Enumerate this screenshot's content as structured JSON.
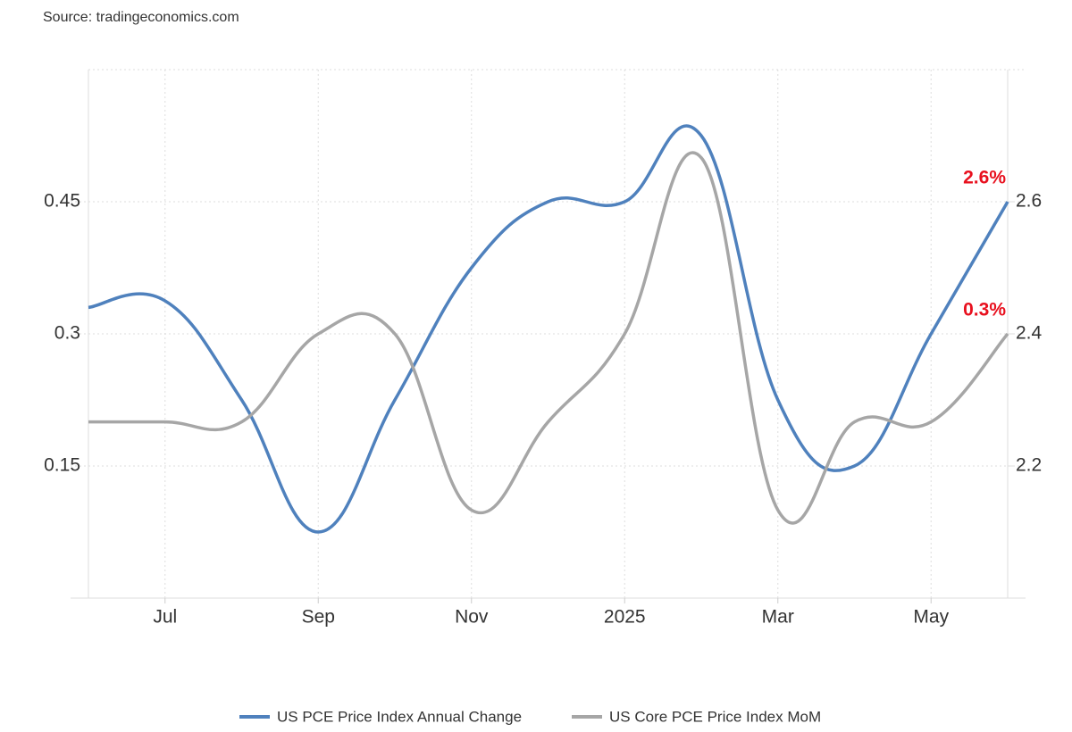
{
  "chart_data": {
    "type": "line",
    "source": "Source: tradingeconomics.com",
    "categories": [
      null,
      "Jul",
      null,
      "Sep",
      null,
      "Nov",
      null,
      "2025",
      null,
      "Mar",
      null,
      "May",
      null
    ],
    "ylim": [
      0,
      0.6
    ],
    "yticks": [
      0.15,
      0.3,
      0.45
    ],
    "y2lim": [
      2.0,
      2.8
    ],
    "y2ticks": [
      2.2,
      2.4,
      2.6
    ],
    "grid": true,
    "legend": "bottom",
    "series": [
      {
        "name": "US PCE Price Index Annual Change",
        "color": "#4f81bd",
        "axis": "y2",
        "values": [
          2.44,
          2.45,
          2.3,
          2.1,
          2.3,
          2.5,
          2.6,
          2.6,
          2.7,
          2.3,
          2.2,
          2.4,
          2.6
        ],
        "value_labels": [
          null,
          null,
          null,
          null,
          null,
          null,
          null,
          null,
          null,
          null,
          null,
          null,
          "2.6%"
        ]
      },
      {
        "name": "US Core PCE Price Index MoM",
        "color": "#a6a6a6",
        "values": [
          0.2,
          0.2,
          0.2,
          0.3,
          0.3,
          0.1,
          0.2,
          0.3,
          0.5,
          0.1,
          0.2,
          0.2,
          0.3
        ],
        "value_labels": [
          null,
          null,
          null,
          null,
          null,
          null,
          null,
          null,
          null,
          null,
          null,
          null,
          "0.3%"
        ]
      }
    ]
  }
}
